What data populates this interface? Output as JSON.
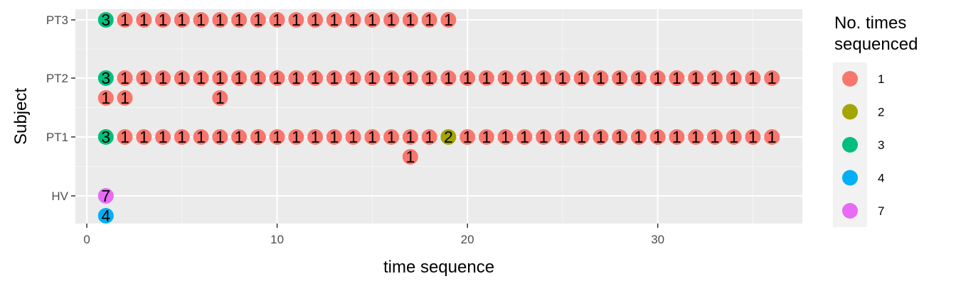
{
  "chart_data": {
    "type": "scatter",
    "xlabel": "time sequence",
    "ylabel": "Subject",
    "xlim": [
      -0.6,
      37.6
    ],
    "x_ticks": [
      0,
      10,
      20,
      30
    ],
    "categories": [
      "HV",
      "PT1",
      "PT2",
      "PT3"
    ],
    "legend": {
      "title_lines": [
        "No. times",
        "sequenced"
      ],
      "position": "right",
      "entries": [
        {
          "label": "1",
          "color": "#F8766D"
        },
        {
          "label": "2",
          "color": "#A3A500"
        },
        {
          "label": "3",
          "color": "#00BF7D"
        },
        {
          "label": "4",
          "color": "#00B0F6"
        },
        {
          "label": "7",
          "color": "#E76BF3"
        }
      ]
    },
    "grid": true,
    "series": [
      {
        "subject": "PT3",
        "value": "3",
        "x": [
          1
        ]
      },
      {
        "subject": "PT3",
        "value": "1",
        "x": [
          2,
          3,
          4,
          5,
          6,
          7,
          8,
          9,
          10,
          11,
          12,
          13,
          14,
          15,
          16,
          17,
          18,
          19
        ]
      },
      {
        "subject": "PT2",
        "value": "3",
        "x": [
          1
        ]
      },
      {
        "subject": "PT2",
        "value": "1",
        "x": [
          2,
          3,
          4,
          5,
          6,
          7,
          8,
          9,
          10,
          11,
          12,
          13,
          14,
          15,
          16,
          17,
          18,
          19,
          20,
          21,
          22,
          23,
          24,
          25,
          26,
          27,
          28,
          29,
          30,
          31,
          32,
          33,
          34,
          35,
          36
        ]
      },
      {
        "subject": "PT2",
        "value": "1",
        "x": [
          1,
          2,
          7
        ],
        "row": 2
      },
      {
        "subject": "PT1",
        "value": "3",
        "x": [
          1
        ]
      },
      {
        "subject": "PT1",
        "value": "1",
        "x": [
          2,
          3,
          4,
          5,
          6,
          7,
          8,
          9,
          10,
          11,
          12,
          13,
          14,
          15,
          16,
          17,
          18
        ]
      },
      {
        "subject": "PT1",
        "value": "2",
        "x": [
          19
        ]
      },
      {
        "subject": "PT1",
        "value": "1",
        "x": [
          20,
          21,
          22,
          23,
          24,
          25,
          26,
          27,
          28,
          29,
          30,
          31,
          32,
          33,
          34,
          35,
          36
        ]
      },
      {
        "subject": "PT1",
        "value": "1",
        "x": [
          17
        ],
        "row": 2
      },
      {
        "subject": "HV",
        "value": "7",
        "x": [
          1
        ]
      },
      {
        "subject": "HV",
        "value": "4",
        "x": [
          1
        ],
        "row": 2
      }
    ]
  }
}
